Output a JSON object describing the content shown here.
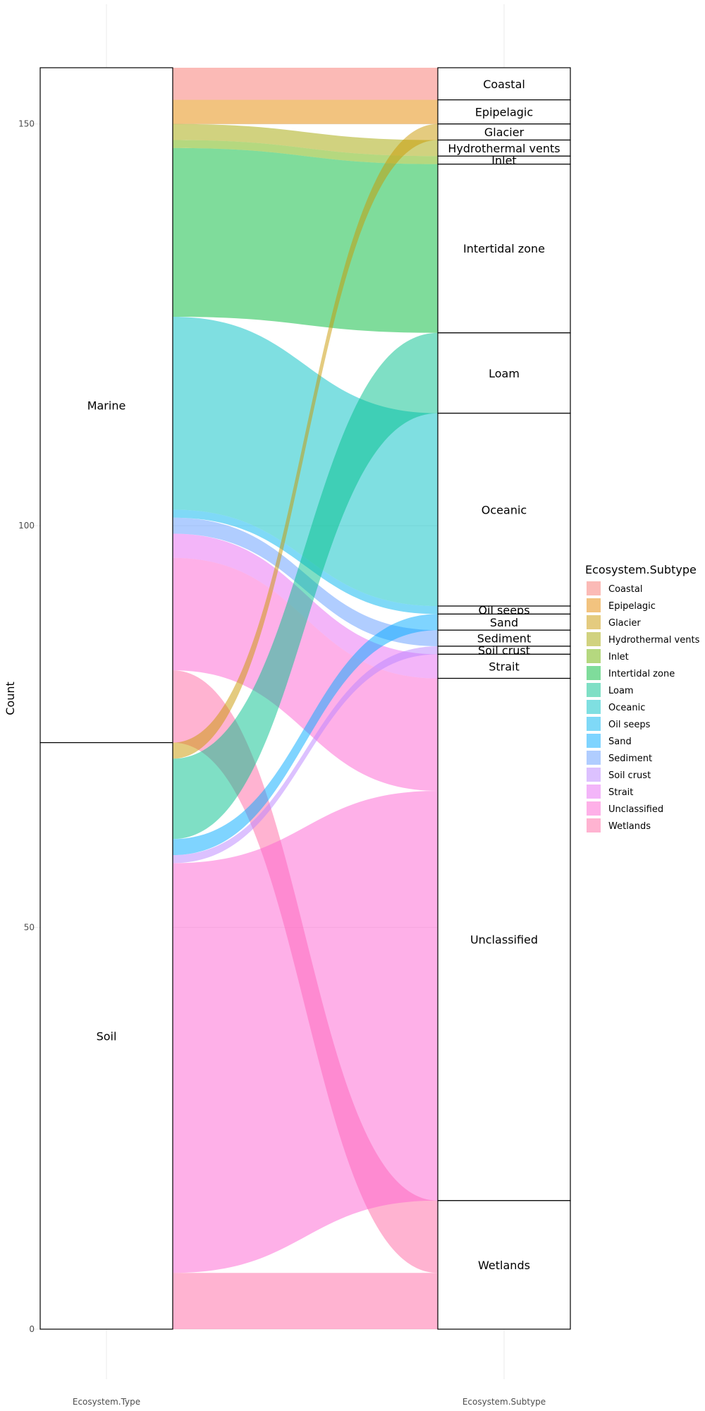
{
  "chart_data": {
    "type": "alluvial",
    "ylabel": "Count",
    "axes": [
      "Ecosystem.Type",
      "Ecosystem.Subtype"
    ],
    "ylim": [
      0,
      157
    ],
    "yticks": [
      0,
      50,
      100,
      150
    ],
    "grid": true,
    "legend": {
      "title": "Ecosystem.Subtype",
      "placement": "right"
    },
    "types": [
      {
        "name": "Marine",
        "value": 84
      },
      {
        "name": "Soil",
        "value": 73
      }
    ],
    "subtypes": [
      {
        "name": "Coastal",
        "color": "#F8766D",
        "value": 4
      },
      {
        "name": "Epipelagic",
        "color": "#E58700",
        "value": 3
      },
      {
        "name": "Glacier",
        "color": "#C99800",
        "value": 2
      },
      {
        "name": "Hydrothermal vents",
        "color": "#A3A500",
        "value": 2
      },
      {
        "name": "Inlet",
        "color": "#6BB100",
        "value": 1
      },
      {
        "name": "Intertidal zone",
        "color": "#00BA38",
        "value": 21
      },
      {
        "name": "Loam",
        "color": "#00C08B",
        "value": 10
      },
      {
        "name": "Oceanic",
        "color": "#00BFC4",
        "value": 24
      },
      {
        "name": "Oil seeps",
        "color": "#00B4F0",
        "value": 1
      },
      {
        "name": "Sand",
        "color": "#00A9FF",
        "value": 2
      },
      {
        "name": "Sediment",
        "color": "#619CFF",
        "value": 2
      },
      {
        "name": "Soil crust",
        "color": "#B983FF",
        "value": 1
      },
      {
        "name": "Strait",
        "color": "#E76BF3",
        "value": 3
      },
      {
        "name": "Unclassified",
        "color": "#FD61D1",
        "value": 65
      },
      {
        "name": "Wetlands",
        "color": "#FF67A4",
        "value": 16
      }
    ],
    "flows": [
      {
        "from": "Marine",
        "to": "Coastal",
        "value": 4
      },
      {
        "from": "Marine",
        "to": "Epipelagic",
        "value": 3
      },
      {
        "from": "Marine",
        "to": "Hydrothermal vents",
        "value": 2
      },
      {
        "from": "Marine",
        "to": "Inlet",
        "value": 1
      },
      {
        "from": "Marine",
        "to": "Intertidal zone",
        "value": 21
      },
      {
        "from": "Marine",
        "to": "Oceanic",
        "value": 24
      },
      {
        "from": "Marine",
        "to": "Oil seeps",
        "value": 1
      },
      {
        "from": "Marine",
        "to": "Sediment",
        "value": 2
      },
      {
        "from": "Marine",
        "to": "Strait",
        "value": 3
      },
      {
        "from": "Marine",
        "to": "Unclassified",
        "value": 14
      },
      {
        "from": "Marine",
        "to": "Wetlands",
        "value": 9
      },
      {
        "from": "Soil",
        "to": "Glacier",
        "value": 2
      },
      {
        "from": "Soil",
        "to": "Loam",
        "value": 10
      },
      {
        "from": "Soil",
        "to": "Sand",
        "value": 2
      },
      {
        "from": "Soil",
        "to": "Soil crust",
        "value": 1
      },
      {
        "from": "Soil",
        "to": "Unclassified",
        "value": 51
      },
      {
        "from": "Soil",
        "to": "Wetlands",
        "value": 7
      }
    ]
  }
}
